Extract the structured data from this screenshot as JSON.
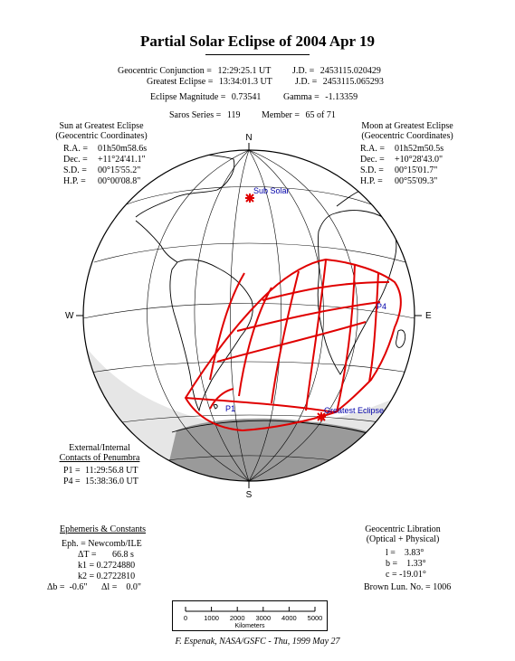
{
  "title": "Partial Solar Eclipse of 2004 Apr 19",
  "header": {
    "conjunction_label": "Geocentric Conjunction =",
    "conjunction_time": "12:29:25.1 UT",
    "conjunction_jd_label": "J.D. =",
    "conjunction_jd": "2453115.020429",
    "greatest_label": "Greatest Eclipse =",
    "greatest_time": "13:34:01.3 UT",
    "greatest_jd_label": "J.D. =",
    "greatest_jd": "2453115.065293",
    "magnitude_label": "Eclipse Magnitude =",
    "magnitude": "0.73541",
    "gamma_label": "Gamma =",
    "gamma": "-1.13359",
    "saros_label": "Saros Series =",
    "saros": "119",
    "member_label": "Member =",
    "member": "65 of 71"
  },
  "sun": {
    "heading1": "Sun at Greatest Eclipse",
    "heading2": "(Geocentric Coordinates)",
    "rows": [
      {
        "label": "R.A. =",
        "value": "01h50m58.6s"
      },
      {
        "label": "Dec. =",
        "value": "+11°24'41.1\""
      },
      {
        "label": "S.D. =",
        "value": "00°15'55.2\""
      },
      {
        "label": "H.P. =",
        "value": "00°00'08.8\""
      }
    ]
  },
  "moon": {
    "heading1": "Moon at Greatest Eclipse",
    "heading2": "(Geocentric Coordinates)",
    "rows": [
      {
        "label": "R.A. =",
        "value": "01h52m50.5s"
      },
      {
        "label": "Dec. =",
        "value": "+10°28'43.0\""
      },
      {
        "label": "S.D. =",
        "value": "00°15'01.7\""
      },
      {
        "label": "H.P. =",
        "value": "00°55'09.3\""
      }
    ]
  },
  "contacts": {
    "heading1": "External/Internal",
    "heading2": "Contacts of Penumbra",
    "rows": [
      {
        "label": "P1 =",
        "value": "11:29:56.8 UT"
      },
      {
        "label": "P4 =",
        "value": "15:38:36.0 UT"
      }
    ]
  },
  "ephemeris": {
    "heading": "Ephemeris & Constants",
    "eph": "Eph. = Newcomb/ILE",
    "dt": "ΔT =       66.8 s",
    "k1": "k1 = 0.2724880",
    "k2": "k2 = 0.2722810",
    "db": "Δb =  -0.6\"",
    "dl": "Δl =    0.0\""
  },
  "libration": {
    "heading1": "Geocentric Libration",
    "heading2": "(Optical + Physical)",
    "l": "l =    3.83°",
    "b": "b =    1.33°",
    "c": "c = -19.01°",
    "brown": "Brown Lun. No. = 1006"
  },
  "map": {
    "north": "N",
    "south": "S",
    "east": "E",
    "west": "W",
    "sub_solar": "Sub Solar",
    "greatest_eclipse": "Greatest Eclipse",
    "p1": "P1",
    "p4": "P4",
    "colors": {
      "eclipse": "#e00000",
      "label": "#0000aa",
      "ice": "#9a9a9a"
    }
  },
  "scale": {
    "ticks": [
      "0",
      "1000",
      "2000",
      "3000",
      "4000",
      "5000"
    ],
    "unit": "Kilometers"
  },
  "credit": "F. Espenak, NASA/GSFC - Thu, 1999 May 27"
}
